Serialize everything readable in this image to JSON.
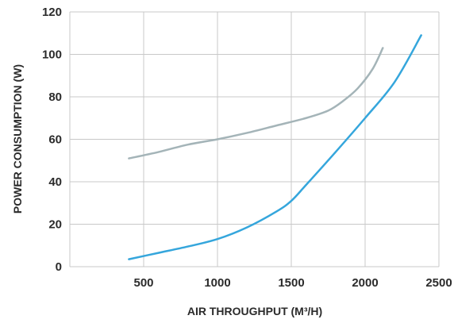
{
  "chart_data": {
    "type": "line",
    "title": "",
    "xlabel": "AIR THROUGHPUT (M³/H)",
    "ylabel": "POWER CONSUMPTION (W)",
    "xlim": [
      0,
      2500
    ],
    "ylim": [
      0,
      120
    ],
    "x_ticks": [
      500,
      1000,
      1500,
      2000,
      2500
    ],
    "y_ticks": [
      0,
      20,
      40,
      60,
      80,
      100,
      120
    ],
    "grid": true,
    "legend": "none",
    "series": [
      {
        "color": "#a4b4b8",
        "points": [
          [
            400,
            51
          ],
          [
            600,
            54
          ],
          [
            800,
            57.5
          ],
          [
            1000,
            60
          ],
          [
            1200,
            63
          ],
          [
            1400,
            66.5
          ],
          [
            1600,
            70
          ],
          [
            1750,
            73.5
          ],
          [
            1850,
            78
          ],
          [
            1950,
            84
          ],
          [
            2050,
            93
          ],
          [
            2120,
            103
          ]
        ]
      },
      {
        "color": "#35a6dc",
        "points": [
          [
            400,
            3.5
          ],
          [
            600,
            6.5
          ],
          [
            800,
            9.5
          ],
          [
            1000,
            13
          ],
          [
            1200,
            18.5
          ],
          [
            1400,
            26
          ],
          [
            1500,
            31
          ],
          [
            1600,
            38.5
          ],
          [
            1800,
            54
          ],
          [
            2000,
            70
          ],
          [
            2200,
            87
          ],
          [
            2380,
            109
          ]
        ]
      }
    ]
  }
}
